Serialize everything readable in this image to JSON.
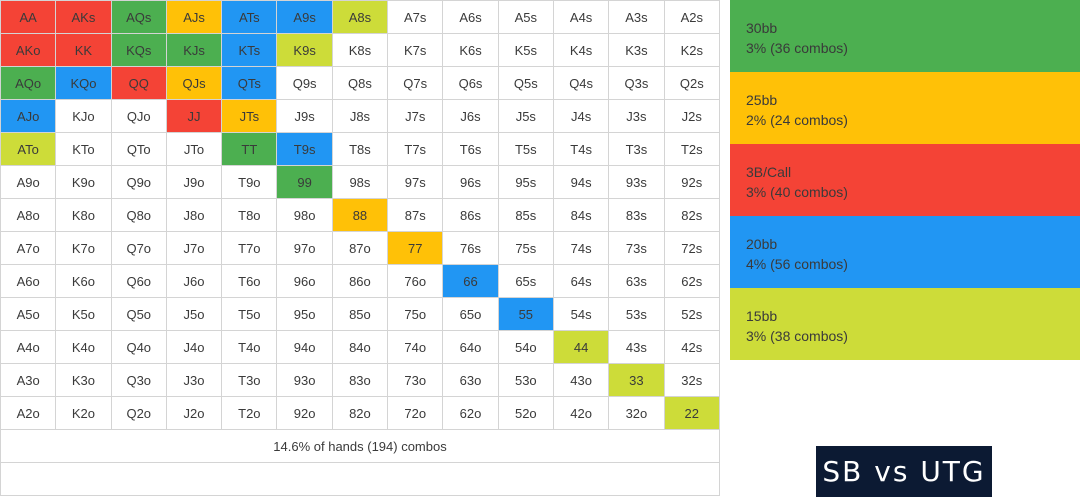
{
  "grid": {
    "rows": [
      [
        [
          "AA",
          "red"
        ],
        [
          "AKs",
          "red"
        ],
        [
          "AQs",
          "green"
        ],
        [
          "AJs",
          "yellow"
        ],
        [
          "ATs",
          "blue"
        ],
        [
          "A9s",
          "blue"
        ],
        [
          "A8s",
          "lime"
        ],
        [
          "A7s",
          ""
        ],
        [
          "A6s",
          ""
        ],
        [
          "A5s",
          ""
        ],
        [
          "A4s",
          ""
        ],
        [
          "A3s",
          ""
        ],
        [
          "A2s",
          ""
        ]
      ],
      [
        [
          "AKo",
          "red"
        ],
        [
          "KK",
          "red"
        ],
        [
          "KQs",
          "green"
        ],
        [
          "KJs",
          "green"
        ],
        [
          "KTs",
          "blue"
        ],
        [
          "K9s",
          "lime"
        ],
        [
          "K8s",
          ""
        ],
        [
          "K7s",
          ""
        ],
        [
          "K6s",
          ""
        ],
        [
          "K5s",
          ""
        ],
        [
          "K4s",
          ""
        ],
        [
          "K3s",
          ""
        ],
        [
          "K2s",
          ""
        ]
      ],
      [
        [
          "AQo",
          "green"
        ],
        [
          "KQo",
          "blue"
        ],
        [
          "QQ",
          "red"
        ],
        [
          "QJs",
          "yellow"
        ],
        [
          "QTs",
          "blue"
        ],
        [
          "Q9s",
          ""
        ],
        [
          "Q8s",
          ""
        ],
        [
          "Q7s",
          ""
        ],
        [
          "Q6s",
          ""
        ],
        [
          "Q5s",
          ""
        ],
        [
          "Q4s",
          ""
        ],
        [
          "Q3s",
          ""
        ],
        [
          "Q2s",
          ""
        ]
      ],
      [
        [
          "AJo",
          "blue"
        ],
        [
          "KJo",
          ""
        ],
        [
          "QJo",
          ""
        ],
        [
          "JJ",
          "red"
        ],
        [
          "JTs",
          "yellow"
        ],
        [
          "J9s",
          ""
        ],
        [
          "J8s",
          ""
        ],
        [
          "J7s",
          ""
        ],
        [
          "J6s",
          ""
        ],
        [
          "J5s",
          ""
        ],
        [
          "J4s",
          ""
        ],
        [
          "J3s",
          ""
        ],
        [
          "J2s",
          ""
        ]
      ],
      [
        [
          "ATo",
          "lime"
        ],
        [
          "KTo",
          ""
        ],
        [
          "QTo",
          ""
        ],
        [
          "JTo",
          ""
        ],
        [
          "TT",
          "green"
        ],
        [
          "T9s",
          "blue"
        ],
        [
          "T8s",
          ""
        ],
        [
          "T7s",
          ""
        ],
        [
          "T6s",
          ""
        ],
        [
          "T5s",
          ""
        ],
        [
          "T4s",
          ""
        ],
        [
          "T3s",
          ""
        ],
        [
          "T2s",
          ""
        ]
      ],
      [
        [
          "A9o",
          ""
        ],
        [
          "K9o",
          ""
        ],
        [
          "Q9o",
          ""
        ],
        [
          "J9o",
          ""
        ],
        [
          "T9o",
          ""
        ],
        [
          "99",
          "green"
        ],
        [
          "98s",
          ""
        ],
        [
          "97s",
          ""
        ],
        [
          "96s",
          ""
        ],
        [
          "95s",
          ""
        ],
        [
          "94s",
          ""
        ],
        [
          "93s",
          ""
        ],
        [
          "92s",
          ""
        ]
      ],
      [
        [
          "A8o",
          ""
        ],
        [
          "K8o",
          ""
        ],
        [
          "Q8o",
          ""
        ],
        [
          "J8o",
          ""
        ],
        [
          "T8o",
          ""
        ],
        [
          "98o",
          ""
        ],
        [
          "88",
          "yellow"
        ],
        [
          "87s",
          ""
        ],
        [
          "86s",
          ""
        ],
        [
          "85s",
          ""
        ],
        [
          "84s",
          ""
        ],
        [
          "83s",
          ""
        ],
        [
          "82s",
          ""
        ]
      ],
      [
        [
          "A7o",
          ""
        ],
        [
          "K7o",
          ""
        ],
        [
          "Q7o",
          ""
        ],
        [
          "J7o",
          ""
        ],
        [
          "T7o",
          ""
        ],
        [
          "97o",
          ""
        ],
        [
          "87o",
          ""
        ],
        [
          "77",
          "yellow"
        ],
        [
          "76s",
          ""
        ],
        [
          "75s",
          ""
        ],
        [
          "74s",
          ""
        ],
        [
          "73s",
          ""
        ],
        [
          "72s",
          ""
        ]
      ],
      [
        [
          "A6o",
          ""
        ],
        [
          "K6o",
          ""
        ],
        [
          "Q6o",
          ""
        ],
        [
          "J6o",
          ""
        ],
        [
          "T6o",
          ""
        ],
        [
          "96o",
          ""
        ],
        [
          "86o",
          ""
        ],
        [
          "76o",
          ""
        ],
        [
          "66",
          "blue"
        ],
        [
          "65s",
          ""
        ],
        [
          "64s",
          ""
        ],
        [
          "63s",
          ""
        ],
        [
          "62s",
          ""
        ]
      ],
      [
        [
          "A5o",
          ""
        ],
        [
          "K5o",
          ""
        ],
        [
          "Q5o",
          ""
        ],
        [
          "J5o",
          ""
        ],
        [
          "T5o",
          ""
        ],
        [
          "95o",
          ""
        ],
        [
          "85o",
          ""
        ],
        [
          "75o",
          ""
        ],
        [
          "65o",
          ""
        ],
        [
          "55",
          "blue"
        ],
        [
          "54s",
          ""
        ],
        [
          "53s",
          ""
        ],
        [
          "52s",
          ""
        ]
      ],
      [
        [
          "A4o",
          ""
        ],
        [
          "K4o",
          ""
        ],
        [
          "Q4o",
          ""
        ],
        [
          "J4o",
          ""
        ],
        [
          "T4o",
          ""
        ],
        [
          "94o",
          ""
        ],
        [
          "84o",
          ""
        ],
        [
          "74o",
          ""
        ],
        [
          "64o",
          ""
        ],
        [
          "54o",
          ""
        ],
        [
          "44",
          "lime"
        ],
        [
          "43s",
          ""
        ],
        [
          "42s",
          ""
        ]
      ],
      [
        [
          "A3o",
          ""
        ],
        [
          "K3o",
          ""
        ],
        [
          "Q3o",
          ""
        ],
        [
          "J3o",
          ""
        ],
        [
          "T3o",
          ""
        ],
        [
          "93o",
          ""
        ],
        [
          "83o",
          ""
        ],
        [
          "73o",
          ""
        ],
        [
          "63o",
          ""
        ],
        [
          "53o",
          ""
        ],
        [
          "43o",
          ""
        ],
        [
          "33",
          "lime"
        ],
        [
          "32s",
          ""
        ]
      ],
      [
        [
          "A2o",
          ""
        ],
        [
          "K2o",
          ""
        ],
        [
          "Q2o",
          ""
        ],
        [
          "J2o",
          ""
        ],
        [
          "T2o",
          ""
        ],
        [
          "92o",
          ""
        ],
        [
          "82o",
          ""
        ],
        [
          "72o",
          ""
        ],
        [
          "62o",
          ""
        ],
        [
          "52o",
          ""
        ],
        [
          "42o",
          ""
        ],
        [
          "32o",
          ""
        ],
        [
          "22",
          "lime"
        ]
      ]
    ],
    "summary": "14.6% of hands (194) combos"
  },
  "legend": [
    {
      "label": "30bb",
      "detail": "3% (36 combos)",
      "color": "#4caf50"
    },
    {
      "label": "25bb",
      "detail": "2% (24 combos)",
      "color": "#ffc107"
    },
    {
      "label": "3B/Call",
      "detail": "3% (40 combos)",
      "color": "#f44336"
    },
    {
      "label": "20bb",
      "detail": "4% (56 combos)",
      "color": "#2196f3"
    },
    {
      "label": "15bb",
      "detail": "3% (38 combos)",
      "color": "#cddc39"
    }
  ],
  "badge": "SB vs UTG"
}
